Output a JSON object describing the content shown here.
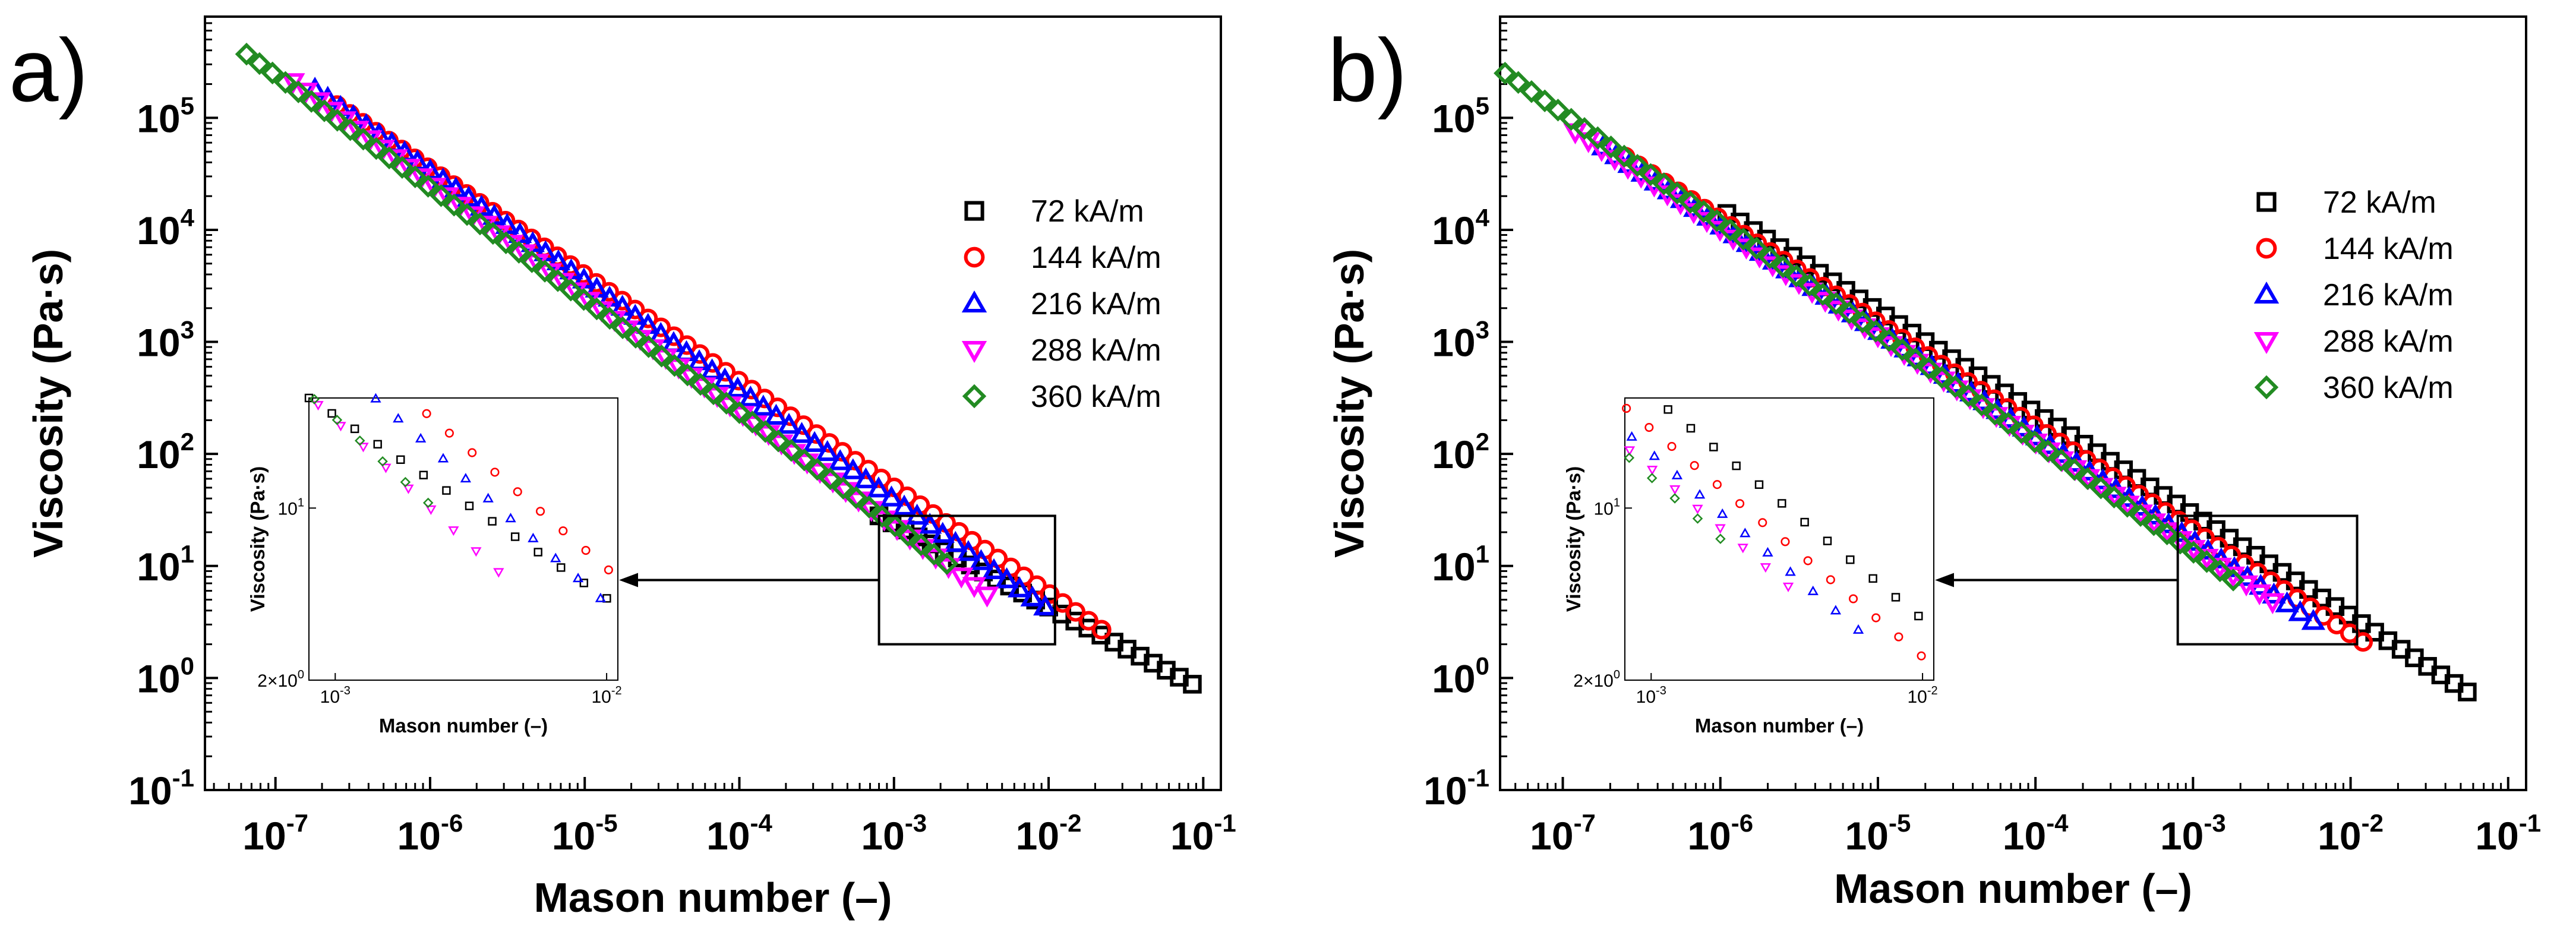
{
  "chart_data": [
    {
      "type": "scatter",
      "panel_label": "a)",
      "title": "",
      "xlabel": "Mason number (–)",
      "ylabel": "Viscosity (Pa·s)",
      "xscale": "log",
      "yscale": "log",
      "xlim": [
        3.5e-08,
        0.13
      ],
      "ylim": [
        0.1,
        800000
      ],
      "xticks": [
        {
          "value": 1e-07,
          "base": "10",
          "exp": "-7"
        },
        {
          "value": 1e-06,
          "base": "10",
          "exp": "-6"
        },
        {
          "value": 1e-05,
          "base": "10",
          "exp": "-5"
        },
        {
          "value": 0.0001,
          "base": "10",
          "exp": "-4"
        },
        {
          "value": 0.001,
          "base": "10",
          "exp": "-3"
        },
        {
          "value": 0.01,
          "base": "10",
          "exp": "-2"
        },
        {
          "value": 0.1,
          "base": "10",
          "exp": "-1"
        }
      ],
      "yticks": [
        {
          "value": 0.1,
          "base": "10",
          "exp": "-1"
        },
        {
          "value": 1,
          "base": "10",
          "exp": "0"
        },
        {
          "value": 10,
          "base": "10",
          "exp": "1"
        },
        {
          "value": 100,
          "base": "10",
          "exp": "2"
        },
        {
          "value": 1000,
          "base": "10",
          "exp": "3"
        },
        {
          "value": 10000,
          "base": "10",
          "exp": "4"
        },
        {
          "value": 100000,
          "base": "10",
          "exp": "5"
        }
      ],
      "legend_position": "right",
      "series": [
        {
          "name": "72 kA/m",
          "marker": "square",
          "color": "#000000",
          "x_range": [
            0.0008,
            0.085
          ],
          "y_range": [
            28,
            0.88
          ]
        },
        {
          "name": "144 kA/m",
          "marker": "circle",
          "color": "#ff0000",
          "x_range": [
            2.5e-07,
            0.022
          ],
          "y_range": [
            130000,
            2.7
          ]
        },
        {
          "name": "216 kA/m",
          "marker": "triangle-up",
          "color": "#0000ff",
          "x_range": [
            1.8e-07,
            0.0095
          ],
          "y_range": [
            180000,
            4.3
          ]
        },
        {
          "name": "288 kA/m",
          "marker": "triangle-down",
          "color": "#ff00ff",
          "x_range": [
            1.3e-07,
            0.004
          ],
          "y_range": [
            210000,
            5.5
          ]
        },
        {
          "name": "360 kA/m",
          "marker": "diamond",
          "color": "#228b22",
          "x_range": [
            6.5e-08,
            0.0022
          ],
          "y_range": [
            370000,
            10.5
          ]
        }
      ],
      "zoom_box": {
        "xlim": [
          0.0008,
          0.011
        ],
        "ylim": [
          2,
          28
        ]
      },
      "inset": {
        "xlabel": "Mason number (–)",
        "ylabel": "Viscosity (Pa·s)",
        "xlim": [
          0.0008,
          0.011
        ],
        "ylim": [
          2,
          28
        ],
        "xticks": [
          {
            "value": 0.001,
            "base": "10",
            "exp": "-3"
          },
          {
            "value": 0.01,
            "base": "10",
            "exp": "-2"
          }
        ],
        "yticks": [
          {
            "value": 2,
            "label": "2×10",
            "exp": "0"
          },
          {
            "value": 10,
            "label": "10",
            "exp": "1"
          }
        ]
      }
    },
    {
      "type": "scatter",
      "panel_label": "b)",
      "title": "",
      "xlabel": "Mason number (–)",
      "ylabel": "Viscosity (Pa·s)",
      "xscale": "log",
      "yscale": "log",
      "xlim": [
        4e-08,
        0.13
      ],
      "ylim": [
        0.1,
        800000
      ],
      "xticks": [
        {
          "value": 1e-07,
          "base": "10",
          "exp": "-7"
        },
        {
          "value": 1e-06,
          "base": "10",
          "exp": "-6"
        },
        {
          "value": 1e-05,
          "base": "10",
          "exp": "-5"
        },
        {
          "value": 0.0001,
          "base": "10",
          "exp": "-4"
        },
        {
          "value": 0.001,
          "base": "10",
          "exp": "-3"
        },
        {
          "value": 0.01,
          "base": "10",
          "exp": "-2"
        },
        {
          "value": 0.1,
          "base": "10",
          "exp": "-1"
        }
      ],
      "yticks": [
        {
          "value": 0.1,
          "base": "10",
          "exp": "-1"
        },
        {
          "value": 1,
          "base": "10",
          "exp": "0"
        },
        {
          "value": 10,
          "base": "10",
          "exp": "1"
        },
        {
          "value": 100,
          "base": "10",
          "exp": "2"
        },
        {
          "value": 1000,
          "base": "10",
          "exp": "3"
        },
        {
          "value": 10000,
          "base": "10",
          "exp": "4"
        },
        {
          "value": 100000,
          "base": "10",
          "exp": "5"
        }
      ],
      "legend_position": "right",
      "series": [
        {
          "name": "72 kA/m",
          "marker": "square",
          "color": "#000000",
          "x_range": [
            1.1e-06,
            0.055
          ],
          "y_range": [
            14000,
            0.75
          ]
        },
        {
          "name": "144 kA/m",
          "marker": "circle",
          "color": "#ff0000",
          "x_range": [
            2.5e-07,
            0.012
          ],
          "y_range": [
            45000,
            2.1
          ]
        },
        {
          "name": "216 kA/m",
          "marker": "triangle-up",
          "color": "#0000ff",
          "x_range": [
            1.8e-07,
            0.0058
          ],
          "y_range": [
            55000,
            3.2
          ]
        },
        {
          "name": "288 kA/m",
          "marker": "triangle-down",
          "color": "#ff00ff",
          "x_range": [
            1.2e-07,
            0.0032
          ],
          "y_range": [
            75000,
            4.8
          ]
        },
        {
          "name": "360 kA/m",
          "marker": "diamond",
          "color": "#228b22",
          "x_range": [
            4.3e-08,
            0.0018
          ],
          "y_range": [
            250000,
            7.5
          ]
        }
      ],
      "zoom_box": {
        "xlim": [
          0.0008,
          0.011
        ],
        "ylim": [
          2,
          28
        ]
      },
      "inset": {
        "xlabel": "Mason number (–)",
        "ylabel": "Viscosity (Pa·s)",
        "xlim": [
          0.0008,
          0.011
        ],
        "ylim": [
          2,
          28
        ],
        "xticks": [
          {
            "value": 0.001,
            "base": "10",
            "exp": "-3"
          },
          {
            "value": 0.01,
            "base": "10",
            "exp": "-2"
          }
        ],
        "yticks": [
          {
            "value": 2,
            "label": "2×10",
            "exp": "0"
          },
          {
            "value": 10,
            "label": "10",
            "exp": "1"
          }
        ]
      }
    }
  ]
}
